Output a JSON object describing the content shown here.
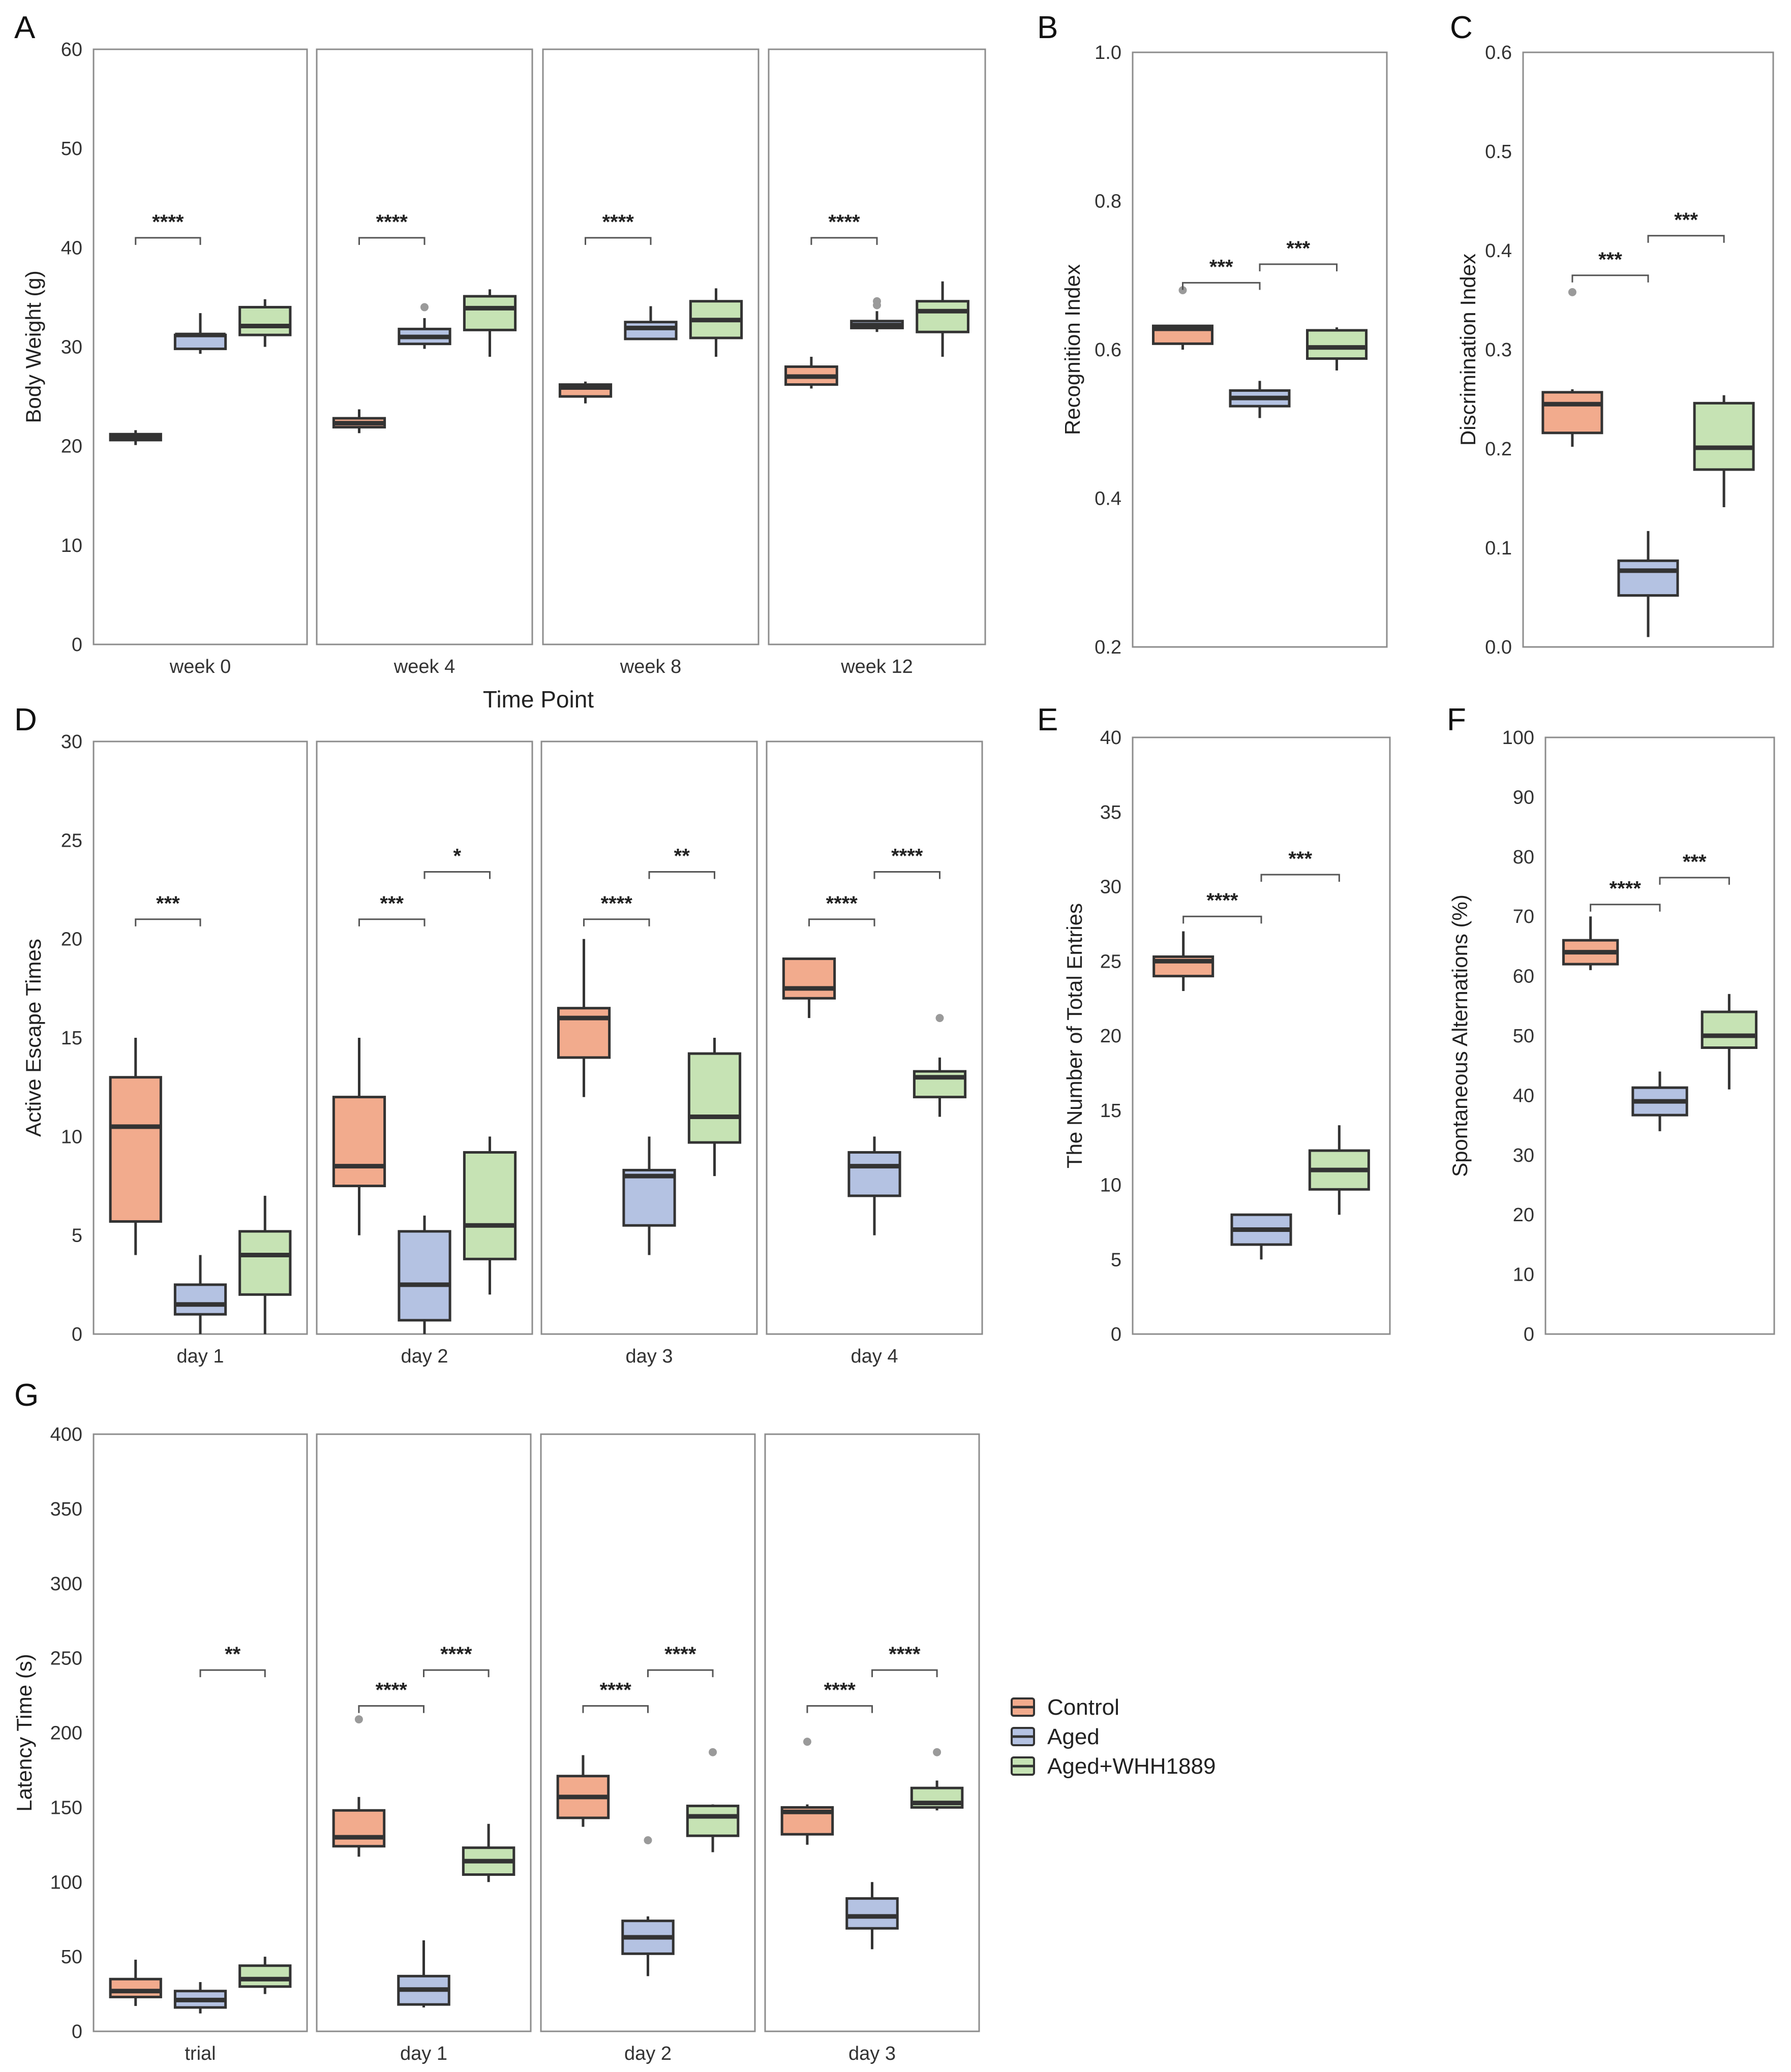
{
  "colors": {
    "Control": "#f2ab8d",
    "Aged": "#b4c2e2",
    "Aged+WHH1889": "#c6e3b4",
    "box_edge": "#333333",
    "frame": "#8c8c8c",
    "outlier": "#9a9a9a"
  },
  "legend": {
    "placement": "right-of-panel-G",
    "items": [
      {
        "label": "Control",
        "color": "#f2ab8d"
      },
      {
        "label": "Aged",
        "color": "#b4c2e2"
      },
      {
        "label": "Aged+WHH1889",
        "color": "#c6e3b4"
      }
    ]
  },
  "chart_data": [
    {
      "panel": "A",
      "type": "box",
      "ylabel": "Body Weight (g)",
      "xlabel": "Time Point",
      "ylim": [
        0,
        60
      ],
      "yticks": [
        0,
        10,
        20,
        30,
        40,
        50,
        60
      ],
      "grid": false,
      "facets": [
        {
          "label": "week 0",
          "boxes": [
            {
              "group": "Control",
              "whislo": 20.1,
              "q1": 20.6,
              "med": 20.9,
              "q3": 21.2,
              "whishi": 21.6,
              "fliers": []
            },
            {
              "group": "Aged",
              "whislo": 29.3,
              "q1": 29.8,
              "med": 31.2,
              "q3": 31.2,
              "whishi": 33.4,
              "fliers": []
            },
            {
              "group": "Aged+WHH1889",
              "whislo": 30.0,
              "q1": 31.2,
              "med": 32.1,
              "q3": 34.0,
              "whishi": 34.8,
              "fliers": []
            }
          ],
          "comparisons": [
            {
              "from": 0,
              "to": 1,
              "label": "****",
              "y": 41
            }
          ]
        },
        {
          "label": "week 4",
          "boxes": [
            {
              "group": "Control",
              "whislo": 21.3,
              "q1": 21.9,
              "med": 22.3,
              "q3": 22.8,
              "whishi": 23.7,
              "fliers": []
            },
            {
              "group": "Aged",
              "whislo": 29.8,
              "q1": 30.3,
              "med": 31.0,
              "q3": 31.8,
              "whishi": 32.9,
              "fliers": [
                34.0
              ]
            },
            {
              "group": "Aged+WHH1889",
              "whislo": 29.0,
              "q1": 31.7,
              "med": 33.9,
              "q3": 35.1,
              "whishi": 35.8,
              "fliers": []
            }
          ],
          "comparisons": [
            {
              "from": 0,
              "to": 1,
              "label": "****",
              "y": 41
            }
          ]
        },
        {
          "label": "week 8",
          "boxes": [
            {
              "group": "Control",
              "whislo": 24.3,
              "q1": 25.0,
              "med": 25.9,
              "q3": 26.2,
              "whishi": 26.5,
              "fliers": []
            },
            {
              "group": "Aged",
              "whislo": 30.8,
              "q1": 30.8,
              "med": 31.9,
              "q3": 32.5,
              "whishi": 34.1,
              "fliers": []
            },
            {
              "group": "Aged+WHH1889",
              "whislo": 29.0,
              "q1": 30.9,
              "med": 32.7,
              "q3": 34.6,
              "whishi": 35.9,
              "fliers": []
            }
          ],
          "comparisons": [
            {
              "from": 0,
              "to": 1,
              "label": "****",
              "y": 41
            }
          ]
        },
        {
          "label": "week 12",
          "boxes": [
            {
              "group": "Control",
              "whislo": 25.8,
              "q1": 26.2,
              "med": 27.0,
              "q3": 28.0,
              "whishi": 29.0,
              "fliers": []
            },
            {
              "group": "Aged",
              "whislo": 31.5,
              "q1": 31.9,
              "med": 32.2,
              "q3": 32.6,
              "whishi": 33.6,
              "fliers": [
                34.2,
                34.6
              ]
            },
            {
              "group": "Aged+WHH1889",
              "whislo": 29.0,
              "q1": 31.5,
              "med": 33.6,
              "q3": 34.6,
              "whishi": 36.6,
              "fliers": []
            }
          ],
          "comparisons": [
            {
              "from": 0,
              "to": 1,
              "label": "****",
              "y": 41
            }
          ]
        }
      ]
    },
    {
      "panel": "B",
      "type": "box",
      "ylabel": "Recognition Index",
      "xlabel": "",
      "ylim": [
        0.2,
        1.0
      ],
      "yticks": [
        0.2,
        0.4,
        0.6,
        0.8,
        1.0
      ],
      "grid": false,
      "facets": [
        {
          "label": "",
          "boxes": [
            {
              "group": "Control",
              "whislo": 0.6,
              "q1": 0.608,
              "med": 0.628,
              "q3": 0.632,
              "whishi": 0.632,
              "fliers": [
                0.68
              ]
            },
            {
              "group": "Aged",
              "whislo": 0.508,
              "q1": 0.524,
              "med": 0.535,
              "q3": 0.545,
              "whishi": 0.558,
              "fliers": []
            },
            {
              "group": "Aged+WHH1889",
              "whislo": 0.572,
              "q1": 0.588,
              "med": 0.603,
              "q3": 0.626,
              "whishi": 0.63,
              "fliers": []
            }
          ],
          "comparisons": [
            {
              "from": 0,
              "to": 1,
              "label": "***",
              "y": 0.69
            },
            {
              "from": 1,
              "to": 2,
              "label": "***",
              "y": 0.715
            }
          ]
        }
      ]
    },
    {
      "panel": "C",
      "type": "box",
      "ylabel": "Discrimination Index",
      "xlabel": "",
      "ylim": [
        0.0,
        0.6
      ],
      "yticks": [
        0.0,
        0.1,
        0.2,
        0.3,
        0.4,
        0.5,
        0.6
      ],
      "grid": false,
      "facets": [
        {
          "label": "",
          "boxes": [
            {
              "group": "Control",
              "whislo": 0.202,
              "q1": 0.216,
              "med": 0.245,
              "q3": 0.257,
              "whishi": 0.26,
              "fliers": [
                0.358
              ]
            },
            {
              "group": "Aged",
              "whislo": 0.01,
              "q1": 0.052,
              "med": 0.077,
              "q3": 0.087,
              "whishi": 0.117,
              "fliers": []
            },
            {
              "group": "Aged+WHH1889",
              "whislo": 0.141,
              "q1": 0.179,
              "med": 0.201,
              "q3": 0.246,
              "whishi": 0.254,
              "fliers": []
            }
          ],
          "comparisons": [
            {
              "from": 0,
              "to": 1,
              "label": "***",
              "y": 0.375
            },
            {
              "from": 1,
              "to": 2,
              "label": "***",
              "y": 0.415
            }
          ]
        }
      ]
    },
    {
      "panel": "D",
      "type": "box",
      "ylabel": "Active Escape Times",
      "xlabel": "",
      "ylim": [
        0,
        30
      ],
      "yticks": [
        0,
        5,
        10,
        15,
        20,
        25,
        30
      ],
      "grid": false,
      "facets": [
        {
          "label": "day 1",
          "boxes": [
            {
              "group": "Control",
              "whislo": 4.0,
              "q1": 5.7,
              "med": 10.5,
              "q3": 13.0,
              "whishi": 15.0,
              "fliers": []
            },
            {
              "group": "Aged",
              "whislo": 0.0,
              "q1": 1.0,
              "med": 1.5,
              "q3": 2.5,
              "whishi": 4.0,
              "fliers": []
            },
            {
              "group": "Aged+WHH1889",
              "whislo": 0.0,
              "q1": 2.0,
              "med": 4.0,
              "q3": 5.2,
              "whishi": 7.0,
              "fliers": []
            }
          ],
          "comparisons": [
            {
              "from": 0,
              "to": 1,
              "label": "***",
              "y": 21.0
            }
          ]
        },
        {
          "label": "day 2",
          "boxes": [
            {
              "group": "Control",
              "whislo": 5.0,
              "q1": 7.5,
              "med": 8.5,
              "q3": 12.0,
              "whishi": 15.0,
              "fliers": []
            },
            {
              "group": "Aged",
              "whislo": 0.0,
              "q1": 0.7,
              "med": 2.5,
              "q3": 5.2,
              "whishi": 6.0,
              "fliers": []
            },
            {
              "group": "Aged+WHH1889",
              "whislo": 2.0,
              "q1": 3.8,
              "med": 5.5,
              "q3": 9.2,
              "whishi": 10.0,
              "fliers": []
            }
          ],
          "comparisons": [
            {
              "from": 0,
              "to": 1,
              "label": "***",
              "y": 21.0
            },
            {
              "from": 1,
              "to": 2,
              "label": "*",
              "y": 23.4
            }
          ]
        },
        {
          "label": "day 3",
          "boxes": [
            {
              "group": "Control",
              "whislo": 12.0,
              "q1": 14.0,
              "med": 16.0,
              "q3": 16.5,
              "whishi": 20.0,
              "fliers": []
            },
            {
              "group": "Aged",
              "whislo": 4.0,
              "q1": 5.5,
              "med": 8.0,
              "q3": 8.3,
              "whishi": 10.0,
              "fliers": []
            },
            {
              "group": "Aged+WHH1889",
              "whislo": 8.0,
              "q1": 9.7,
              "med": 11.0,
              "q3": 14.2,
              "whishi": 15.0,
              "fliers": []
            }
          ],
          "comparisons": [
            {
              "from": 0,
              "to": 1,
              "label": "****",
              "y": 21.0
            },
            {
              "from": 1,
              "to": 2,
              "label": "**",
              "y": 23.4
            }
          ]
        },
        {
          "label": "day 4",
          "boxes": [
            {
              "group": "Control",
              "whislo": 16.0,
              "q1": 17.0,
              "med": 17.5,
              "q3": 19.0,
              "whishi": 19.0,
              "fliers": []
            },
            {
              "group": "Aged",
              "whislo": 5.0,
              "q1": 7.0,
              "med": 8.5,
              "q3": 9.2,
              "whishi": 10.0,
              "fliers": []
            },
            {
              "group": "Aged+WHH1889",
              "whislo": 11.0,
              "q1": 12.0,
              "med": 13.0,
              "q3": 13.3,
              "whishi": 14.0,
              "fliers": [
                16.0
              ]
            }
          ],
          "comparisons": [
            {
              "from": 0,
              "to": 1,
              "label": "****",
              "y": 21.0
            },
            {
              "from": 1,
              "to": 2,
              "label": "****",
              "y": 23.4
            }
          ]
        }
      ]
    },
    {
      "panel": "E",
      "type": "box",
      "ylabel": "The Number of Total Entries",
      "xlabel": "",
      "ylim": [
        0,
        40
      ],
      "yticks": [
        0,
        5,
        10,
        15,
        20,
        25,
        30,
        35,
        40
      ],
      "grid": false,
      "facets": [
        {
          "label": "",
          "boxes": [
            {
              "group": "Control",
              "whislo": 23.0,
              "q1": 24.0,
              "med": 25.0,
              "q3": 25.3,
              "whishi": 27.0,
              "fliers": []
            },
            {
              "group": "Aged",
              "whislo": 5.0,
              "q1": 6.0,
              "med": 7.0,
              "q3": 8.0,
              "whishi": 8.0,
              "fliers": []
            },
            {
              "group": "Aged+WHH1889",
              "whislo": 8.0,
              "q1": 9.7,
              "med": 11.0,
              "q3": 12.3,
              "whishi": 14.0,
              "fliers": []
            }
          ],
          "comparisons": [
            {
              "from": 0,
              "to": 1,
              "label": "****",
              "y": 28.0
            },
            {
              "from": 1,
              "to": 2,
              "label": "***",
              "y": 30.8
            }
          ]
        }
      ]
    },
    {
      "panel": "F",
      "type": "box",
      "ylabel": "Spontaneous Alternations (%)",
      "xlabel": "",
      "ylim": [
        0,
        100
      ],
      "yticks": [
        0,
        10,
        20,
        30,
        40,
        50,
        60,
        70,
        80,
        90,
        100
      ],
      "grid": false,
      "facets": [
        {
          "label": "",
          "boxes": [
            {
              "group": "Control",
              "whislo": 61.0,
              "q1": 62.0,
              "med": 64.0,
              "q3": 66.0,
              "whishi": 70.0,
              "fliers": []
            },
            {
              "group": "Aged",
              "whislo": 34.0,
              "q1": 36.7,
              "med": 39.0,
              "q3": 41.3,
              "whishi": 44.0,
              "fliers": []
            },
            {
              "group": "Aged+WHH1889",
              "whislo": 41.0,
              "q1": 48.0,
              "med": 50.0,
              "q3": 54.0,
              "whishi": 57.0,
              "fliers": []
            }
          ],
          "comparisons": [
            {
              "from": 0,
              "to": 1,
              "label": "****",
              "y": 72.0
            },
            {
              "from": 1,
              "to": 2,
              "label": "***",
              "y": 76.5
            }
          ]
        }
      ]
    },
    {
      "panel": "G",
      "type": "box",
      "ylabel": "Latency Time (s)",
      "xlabel": "",
      "ylim": [
        0,
        400
      ],
      "yticks": [
        0,
        50,
        100,
        150,
        200,
        250,
        300,
        350,
        400
      ],
      "grid": false,
      "facets": [
        {
          "label": "trial",
          "boxes": [
            {
              "group": "Control",
              "whislo": 17,
              "q1": 23,
              "med": 27,
              "q3": 35,
              "whishi": 48,
              "fliers": []
            },
            {
              "group": "Aged",
              "whislo": 12,
              "q1": 16,
              "med": 21,
              "q3": 27,
              "whishi": 33,
              "fliers": []
            },
            {
              "group": "Aged+WHH1889",
              "whislo": 25,
              "q1": 30,
              "med": 35,
              "q3": 44,
              "whishi": 50,
              "fliers": []
            }
          ],
          "comparisons": [
            {
              "from": 1,
              "to": 2,
              "label": "**",
              "y": 242
            }
          ]
        },
        {
          "label": "day 1",
          "boxes": [
            {
              "group": "Control",
              "whislo": 117,
              "q1": 124,
              "med": 130,
              "q3": 148,
              "whishi": 157,
              "fliers": [
                209
              ]
            },
            {
              "group": "Aged",
              "whislo": 16,
              "q1": 18,
              "med": 28,
              "q3": 37,
              "whishi": 61,
              "fliers": []
            },
            {
              "group": "Aged+WHH1889",
              "whislo": 100,
              "q1": 105,
              "med": 114,
              "q3": 123,
              "whishi": 139,
              "fliers": []
            }
          ],
          "comparisons": [
            {
              "from": 0,
              "to": 1,
              "label": "****",
              "y": 218
            },
            {
              "from": 1,
              "to": 2,
              "label": "****",
              "y": 242
            }
          ]
        },
        {
          "label": "day 2",
          "boxes": [
            {
              "group": "Control",
              "whislo": 137,
              "q1": 143,
              "med": 157,
              "q3": 171,
              "whishi": 185,
              "fliers": []
            },
            {
              "group": "Aged",
              "whislo": 37,
              "q1": 52,
              "med": 63,
              "q3": 74,
              "whishi": 77,
              "fliers": [
                128
              ]
            },
            {
              "group": "Aged+WHH1889",
              "whislo": 120,
              "q1": 131,
              "med": 144,
              "q3": 151,
              "whishi": 152,
              "fliers": [
                187
              ]
            }
          ],
          "comparisons": [
            {
              "from": 0,
              "to": 1,
              "label": "****",
              "y": 218
            },
            {
              "from": 1,
              "to": 2,
              "label": "****",
              "y": 242
            }
          ]
        },
        {
          "label": "day 3",
          "boxes": [
            {
              "group": "Control",
              "whislo": 125,
              "q1": 132,
              "med": 147,
              "q3": 150,
              "whishi": 152,
              "fliers": [
                194
              ]
            },
            {
              "group": "Aged",
              "whislo": 55,
              "q1": 69,
              "med": 77,
              "q3": 89,
              "whishi": 100,
              "fliers": []
            },
            {
              "group": "Aged+WHH1889",
              "whislo": 148,
              "q1": 150,
              "med": 153,
              "q3": 163,
              "whishi": 168,
              "fliers": [
                187
              ]
            }
          ],
          "comparisons": [
            {
              "from": 0,
              "to": 1,
              "label": "****",
              "y": 218
            },
            {
              "from": 1,
              "to": 2,
              "label": "****",
              "y": 242
            }
          ]
        }
      ]
    }
  ]
}
